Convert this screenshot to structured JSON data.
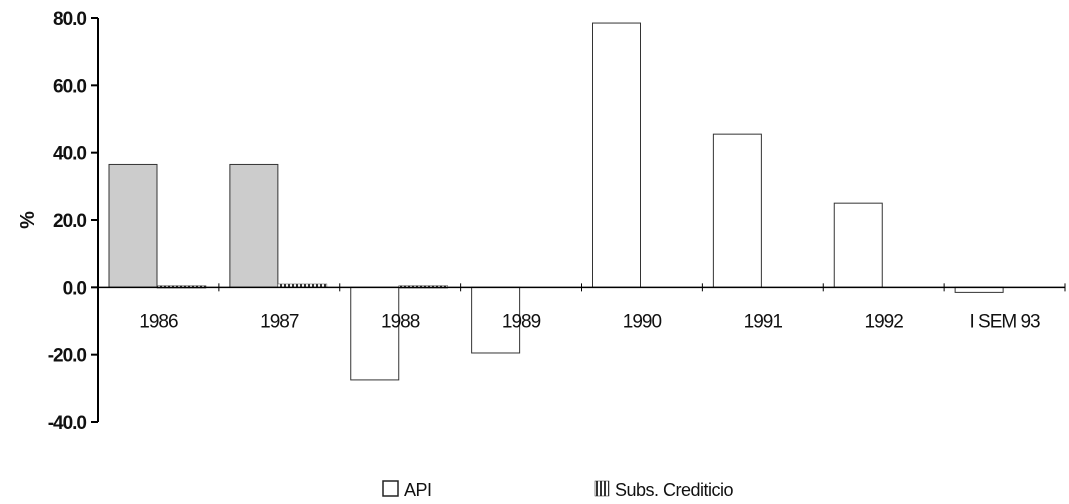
{
  "chart_data": {
    "type": "bar",
    "categories": [
      "1986",
      "1987",
      "1988",
      "1989",
      "1990",
      "1991",
      "1992",
      "I SEM 93"
    ],
    "series": [
      {
        "name": "API",
        "values": [
          36.5,
          36.5,
          -27.5,
          -19.5,
          78.5,
          45.5,
          25.0,
          -1.5
        ]
      },
      {
        "name": "Subs. Crediticio",
        "values": [
          0.5,
          1.0,
          0.5,
          0.0,
          0.0,
          0.0,
          0.0,
          0.0
        ]
      }
    ],
    "ylabel": "%",
    "ylim": [
      -40,
      80
    ],
    "yticks": [
      80.0,
      60.0,
      40.0,
      20.0,
      0.0,
      -20.0,
      -40.0
    ],
    "ytick_labels": [
      "80.0",
      "60.0",
      "40.0",
      "20.0",
      "0.0",
      "-20.0",
      "-40.0"
    ],
    "legend_position": "bottom",
    "grid": false,
    "colors": {
      "api_fill": "#ffffff",
      "api_stroke": "#333333",
      "subs_fill": "#555555",
      "first_bar_fill": "#cccccc",
      "axis": "#000000"
    }
  }
}
